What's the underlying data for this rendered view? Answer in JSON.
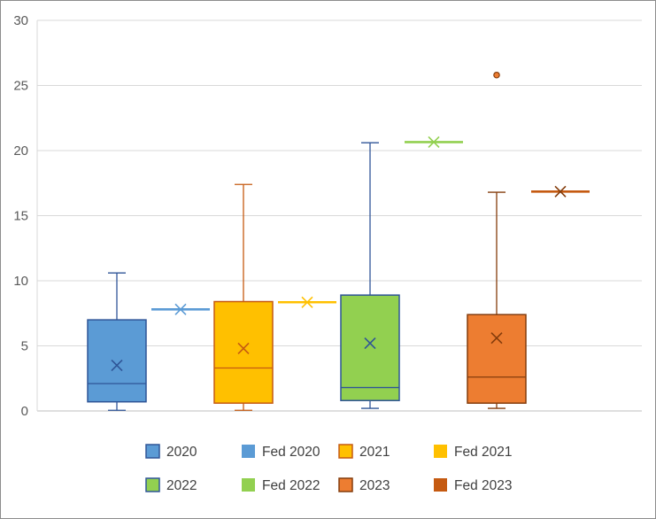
{
  "chart_data": {
    "type": "box",
    "title": "",
    "xlabel": "",
    "ylabel": "",
    "ylim": [
      0,
      30
    ],
    "yticks": [
      0,
      5,
      10,
      15,
      20,
      25,
      30
    ],
    "grid": true,
    "legend_position": "bottom",
    "series": [
      {
        "name": "2020",
        "kind": "box",
        "min": 0.05,
        "q1": 0.7,
        "median": 2.1,
        "q3": 7.0,
        "max": 10.6,
        "mean": 3.5,
        "outliers": [],
        "fill": "#5b9bd5",
        "stroke": "#2f5597"
      },
      {
        "name": "Fed 2020",
        "kind": "rate",
        "value": 7.8,
        "fill": "#5b9bd5",
        "stroke": "#5b9bd5"
      },
      {
        "name": "2021",
        "kind": "box",
        "min": 0.05,
        "q1": 0.6,
        "median": 3.3,
        "q3": 8.4,
        "max": 17.4,
        "mean": 4.8,
        "outliers": [],
        "fill": "#ffc000",
        "stroke": "#c55a11"
      },
      {
        "name": "Fed 2021",
        "kind": "rate",
        "value": 8.35,
        "fill": "#ffc000",
        "stroke": "#ffc000"
      },
      {
        "name": "2022",
        "kind": "box",
        "min": 0.2,
        "q1": 0.8,
        "median": 1.8,
        "q3": 8.9,
        "max": 20.6,
        "mean": 5.2,
        "outliers": [],
        "fill": "#92d050",
        "stroke": "#2f5597"
      },
      {
        "name": "Fed 2022",
        "kind": "rate",
        "value": 20.65,
        "fill": "#92d050",
        "stroke": "#92d050"
      },
      {
        "name": "2023",
        "kind": "box",
        "min": 0.2,
        "q1": 0.6,
        "median": 2.6,
        "q3": 7.4,
        "max": 16.8,
        "mean": 5.6,
        "outliers": [
          25.8
        ],
        "fill": "#ed7d31",
        "stroke": "#843c0c"
      },
      {
        "name": "Fed 2023",
        "kind": "rate",
        "value": 16.85,
        "fill": "#c55a11",
        "stroke": "#843c0c"
      }
    ]
  }
}
